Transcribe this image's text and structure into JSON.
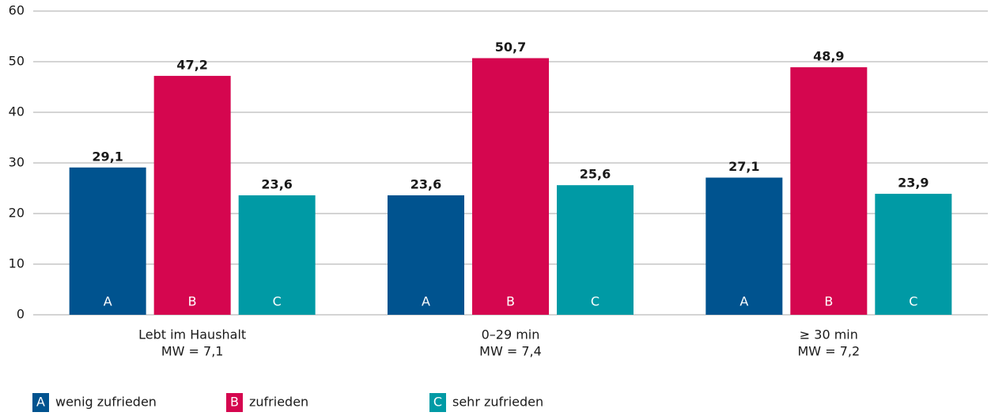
{
  "chart_data": {
    "type": "bar",
    "categories": [
      [
        "Lebt im Haushalt",
        "MW = 7,1"
      ],
      [
        "0–29 min",
        "MW = 7,4"
      ],
      [
        "≥ 30 min",
        "MW = 7,2"
      ]
    ],
    "series": [
      {
        "name": "wenig zufrieden",
        "letter": "A",
        "color": "#00538f",
        "values": [
          29.1,
          23.6,
          27.1
        ],
        "value_labels": [
          "29,1",
          "23,6",
          "27,1"
        ]
      },
      {
        "name": "zufrieden",
        "letter": "B",
        "color": "#d5064f",
        "values": [
          47.2,
          50.7,
          48.9
        ],
        "value_labels": [
          "47,2",
          "50,7",
          "48,9"
        ]
      },
      {
        "name": "sehr zufrieden",
        "letter": "C",
        "color": "#009aa5",
        "values": [
          23.6,
          25.6,
          23.9
        ],
        "value_labels": [
          "23,6",
          "25,6",
          "23,9"
        ]
      }
    ],
    "ylim": [
      0,
      60
    ],
    "yticks": [
      0,
      10,
      20,
      30,
      40,
      50,
      60
    ],
    "grid": true
  }
}
